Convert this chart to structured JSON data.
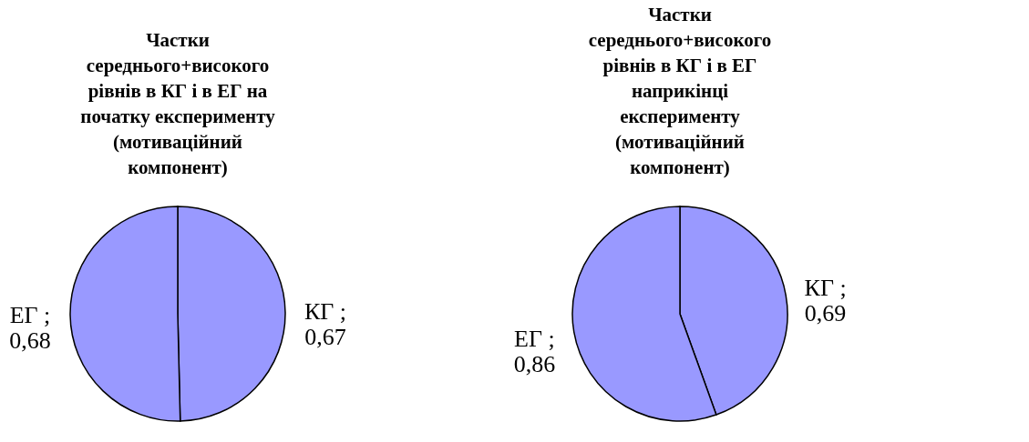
{
  "chart_data": [
    {
      "type": "pie",
      "title": "Частки середнього+високого рівнів в КГ і в ЕГ на початку експерименту (мотиваційний компонент)",
      "categories": [
        "КГ",
        "ЕГ"
      ],
      "values": [
        0.67,
        0.68
      ],
      "colors": [
        "#9999ff",
        "#9999ff"
      ],
      "value_labels": [
        ";\n0,67",
        ";\n0,68"
      ],
      "legend": false
    },
    {
      "type": "pie",
      "title": "Частки середнього+високого рівнів в КГ і в ЕГ наприкінці експерименту (мотиваційний компонент)",
      "categories": [
        "КГ",
        "ЕГ"
      ],
      "values": [
        0.69,
        0.86
      ],
      "colors": [
        "#9999ff",
        "#9999ff"
      ],
      "value_labels": [
        ";\n0,69",
        ";\n0,86"
      ],
      "legend": false
    }
  ]
}
